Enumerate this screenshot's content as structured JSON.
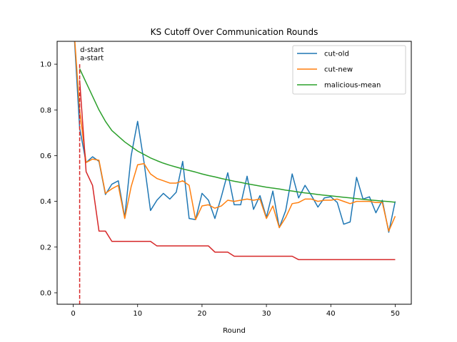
{
  "chart_data": {
    "type": "line",
    "title": "KS Cutoff Over Communication Rounds",
    "xlabel": "Round",
    "ylabel": "",
    "xlim": [
      -2.5,
      52.5
    ],
    "ylim": [
      -0.05,
      1.1
    ],
    "xticks": [
      0,
      10,
      20,
      30,
      40,
      50
    ],
    "yticks": [
      0.0,
      0.2,
      0.4,
      0.6,
      0.8,
      1.0
    ],
    "grid": false,
    "legend_position": "top-right",
    "series": [
      {
        "name": "cut-old",
        "color": "#1f77b4",
        "x": [
          0,
          1,
          2,
          3,
          4,
          5,
          6,
          7,
          8,
          9,
          10,
          11,
          12,
          13,
          14,
          15,
          16,
          17,
          18,
          19,
          20,
          21,
          22,
          23,
          24,
          25,
          26,
          27,
          28,
          29,
          30,
          31,
          32,
          33,
          34,
          35,
          36,
          37,
          38,
          39,
          40,
          41,
          42,
          43,
          44,
          45,
          46,
          47,
          48,
          49,
          50
        ],
        "y": [
          1.2,
          0.72,
          0.57,
          0.595,
          0.575,
          0.43,
          0.475,
          0.49,
          0.33,
          0.6,
          0.75,
          0.57,
          0.36,
          0.405,
          0.435,
          0.41,
          0.44,
          0.575,
          0.325,
          0.32,
          0.435,
          0.405,
          0.325,
          0.42,
          0.525,
          0.385,
          0.385,
          0.51,
          0.365,
          0.425,
          0.33,
          0.445,
          0.285,
          0.36,
          0.52,
          0.415,
          0.47,
          0.425,
          0.375,
          0.415,
          0.42,
          0.395,
          0.3,
          0.31,
          0.505,
          0.41,
          0.42,
          0.35,
          0.405,
          0.265,
          0.4
        ]
      },
      {
        "name": "cut-new",
        "color": "#ff7f0e",
        "x": [
          0,
          1,
          2,
          3,
          4,
          5,
          6,
          7,
          8,
          9,
          10,
          11,
          12,
          13,
          14,
          15,
          16,
          17,
          18,
          19,
          20,
          21,
          22,
          23,
          24,
          25,
          26,
          27,
          28,
          29,
          30,
          31,
          32,
          33,
          34,
          35,
          36,
          37,
          38,
          39,
          40,
          41,
          42,
          43,
          44,
          45,
          46,
          47,
          48,
          49,
          50
        ],
        "y": [
          1.2,
          0.8,
          0.57,
          0.585,
          0.58,
          0.435,
          0.455,
          0.47,
          0.325,
          0.465,
          0.56,
          0.565,
          0.52,
          0.5,
          0.49,
          0.48,
          0.48,
          0.49,
          0.47,
          0.32,
          0.38,
          0.385,
          0.37,
          0.38,
          0.405,
          0.4,
          0.405,
          0.41,
          0.405,
          0.41,
          0.325,
          0.38,
          0.285,
          0.33,
          0.39,
          0.395,
          0.41,
          0.41,
          0.4,
          0.405,
          0.405,
          0.41,
          0.4,
          0.39,
          0.4,
          0.4,
          0.4,
          0.395,
          0.395,
          0.27,
          0.335
        ]
      },
      {
        "name": "malicious-mean",
        "color": "#2ca02c",
        "x": [
          1,
          2,
          3,
          4,
          5,
          6,
          7,
          8,
          9,
          10,
          11,
          12,
          13,
          14,
          15,
          16,
          17,
          18,
          19,
          20,
          21,
          22,
          23,
          24,
          25,
          26,
          27,
          28,
          29,
          30,
          31,
          32,
          33,
          34,
          35,
          36,
          37,
          38,
          39,
          40,
          41,
          42,
          43,
          44,
          45,
          46,
          47,
          48,
          49,
          50
        ],
        "y": [
          0.98,
          0.92,
          0.86,
          0.8,
          0.75,
          0.71,
          0.685,
          0.66,
          0.64,
          0.62,
          0.605,
          0.59,
          0.578,
          0.567,
          0.558,
          0.55,
          0.542,
          0.535,
          0.528,
          0.52,
          0.513,
          0.507,
          0.5,
          0.494,
          0.488,
          0.483,
          0.477,
          0.472,
          0.467,
          0.462,
          0.458,
          0.454,
          0.449,
          0.445,
          0.441,
          0.437,
          0.434,
          0.43,
          0.427,
          0.424,
          0.421,
          0.418,
          0.415,
          0.412,
          0.409,
          0.406,
          0.404,
          0.401,
          0.399,
          0.396
        ]
      },
      {
        "name": "",
        "color": "#d62728",
        "x": [
          1,
          2,
          3,
          4,
          5,
          6,
          7,
          8,
          9,
          10,
          11,
          12,
          13,
          14,
          15,
          16,
          17,
          18,
          19,
          20,
          21,
          22,
          23,
          24,
          25,
          26,
          27,
          28,
          29,
          30,
          31,
          32,
          33,
          34,
          35,
          36,
          37,
          38,
          39,
          40,
          41,
          42,
          43,
          44,
          45,
          46,
          47,
          48,
          49,
          50
        ],
        "y": [
          0.93,
          0.53,
          0.47,
          0.27,
          0.27,
          0.225,
          0.225,
          0.225,
          0.225,
          0.225,
          0.225,
          0.225,
          0.205,
          0.205,
          0.205,
          0.205,
          0.205,
          0.205,
          0.205,
          0.205,
          0.205,
          0.178,
          0.178,
          0.178,
          0.16,
          0.16,
          0.16,
          0.16,
          0.16,
          0.16,
          0.16,
          0.16,
          0.16,
          0.16,
          0.145,
          0.145,
          0.145,
          0.145,
          0.145,
          0.145,
          0.145,
          0.145,
          0.145,
          0.145,
          0.145,
          0.145,
          0.145,
          0.145,
          0.145,
          0.145
        ]
      }
    ],
    "vline": {
      "x": 1,
      "color": "#d62728",
      "style": "dashed"
    },
    "annotations": [
      {
        "text": "d-start",
        "x": 1,
        "y": 1.065
      },
      {
        "text": "a-start",
        "x": 1,
        "y": 1.03
      }
    ]
  }
}
